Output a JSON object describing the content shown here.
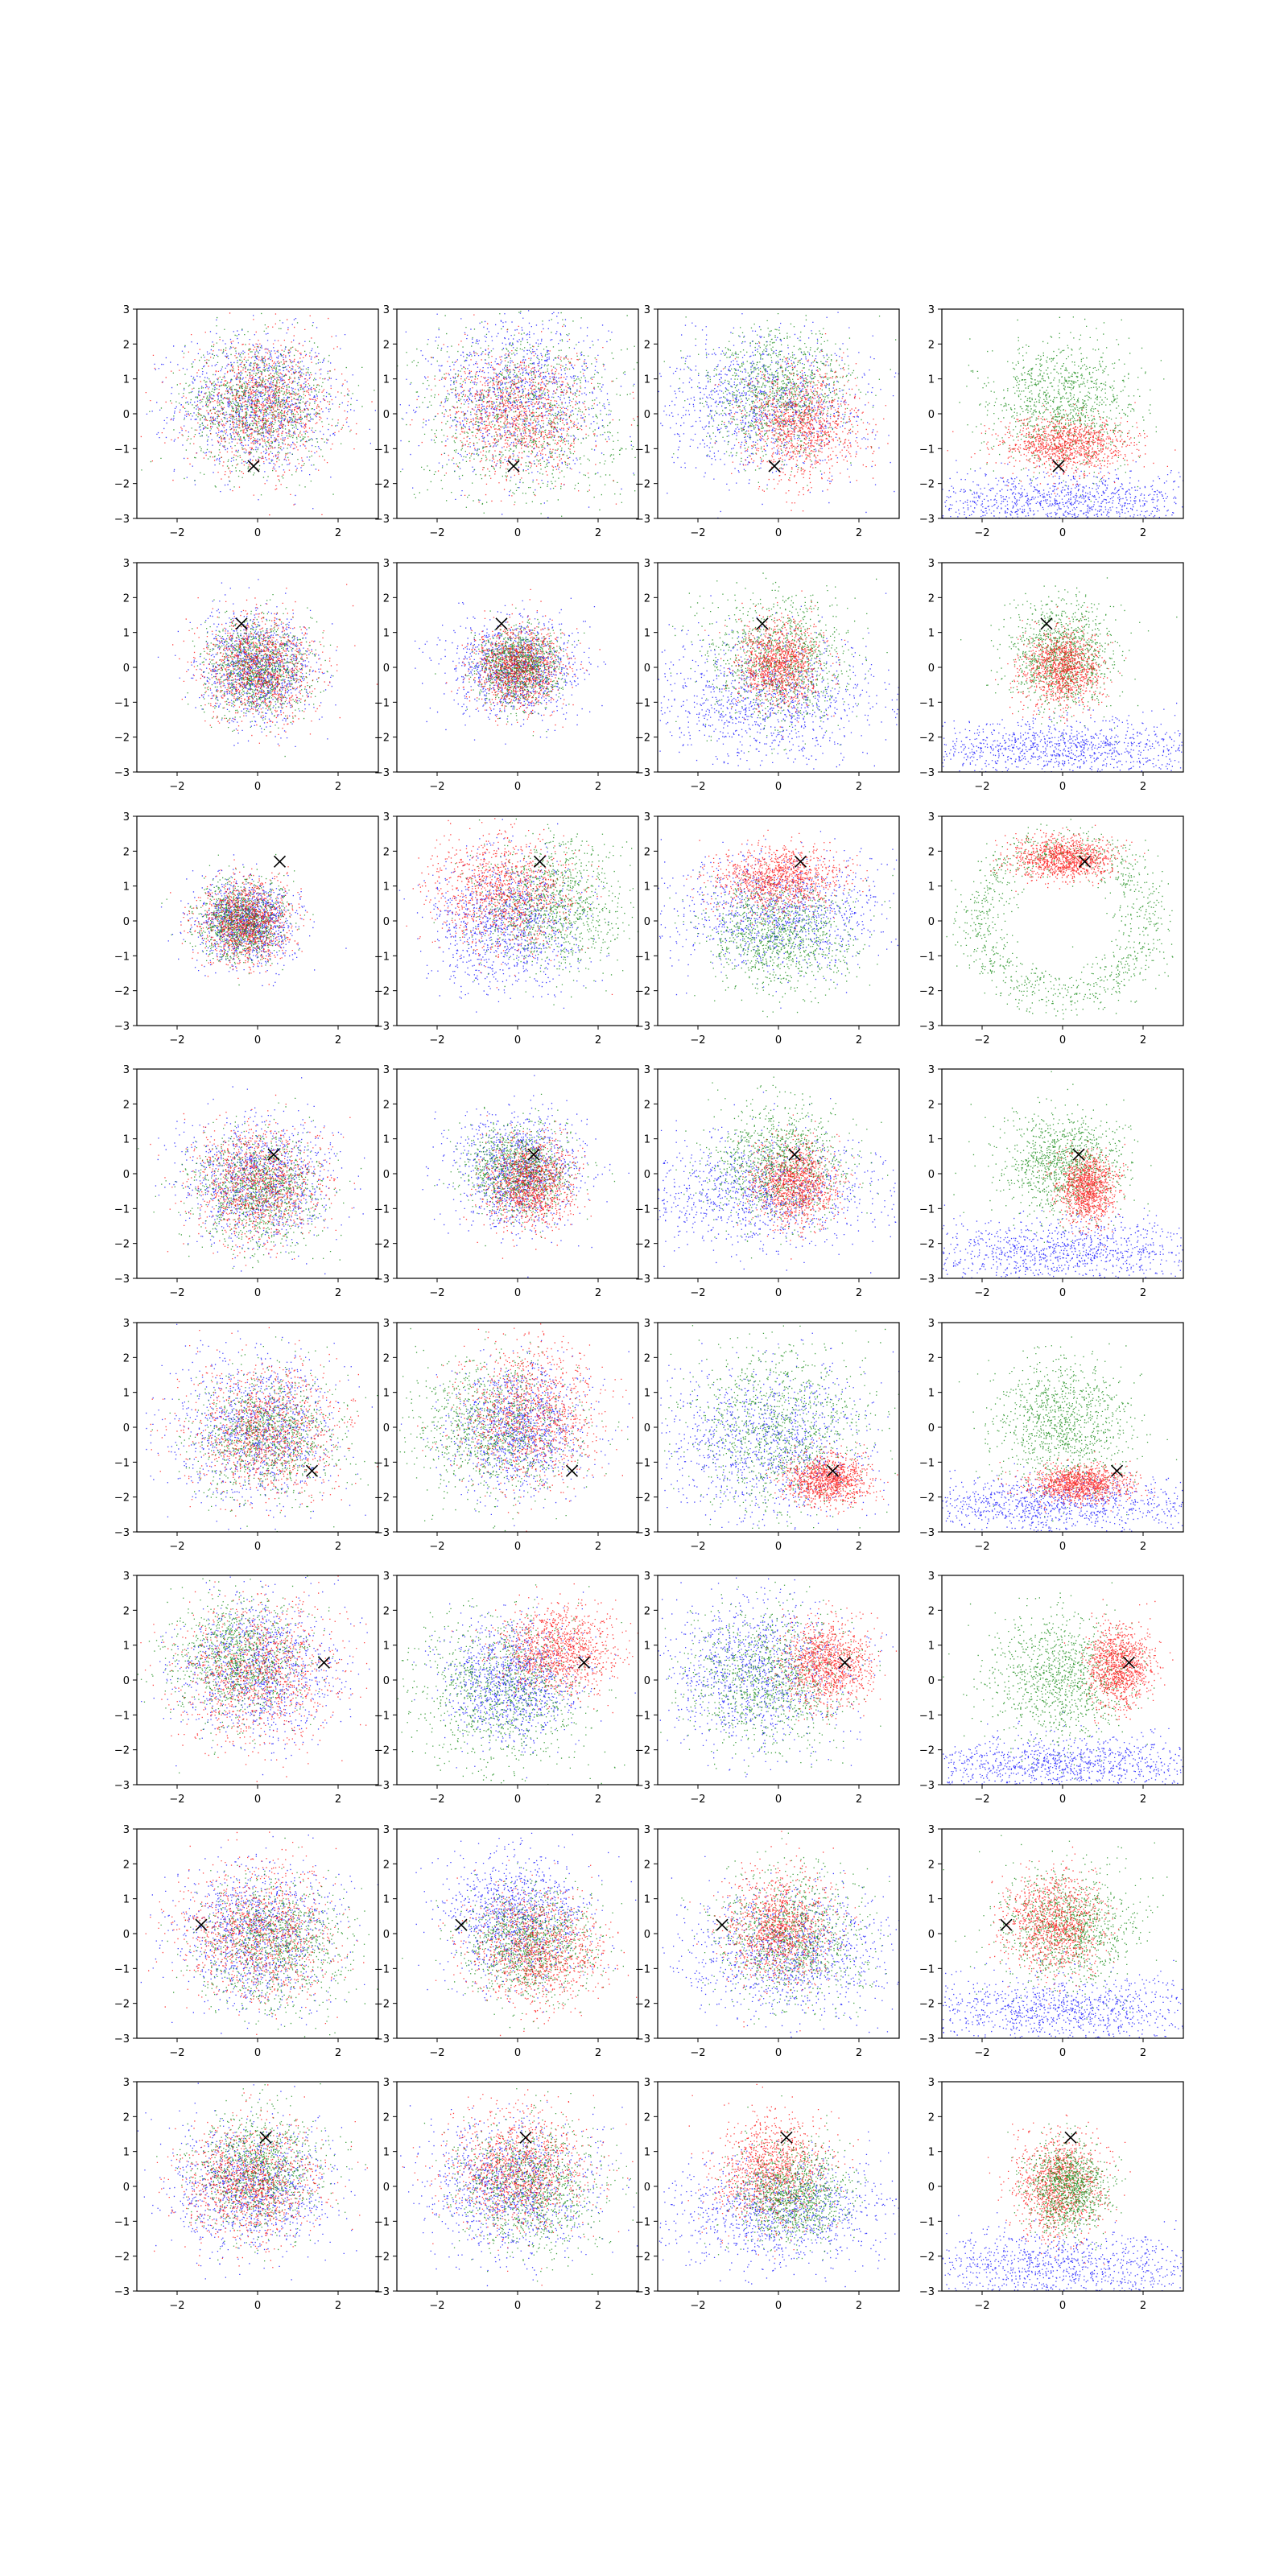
{
  "figure": {
    "background": "#ffffff",
    "rows": 8,
    "cols": 4,
    "point_colors": [
      "#0000ff",
      "#008000",
      "#ff0000"
    ],
    "marker": "x",
    "marker_color": "#000000"
  },
  "chart_data": {
    "type": "scatter",
    "xlim": [
      -3,
      3
    ],
    "ylim": [
      -3,
      3
    ],
    "x_ticks": [
      -2,
      0,
      2
    ],
    "y_ticks": [
      -3,
      -2,
      -1,
      0,
      1,
      2,
      3
    ],
    "x_tick_labels": [
      "−2",
      "0",
      "2"
    ],
    "y_tick_labels": [
      "−3",
      "−2",
      "−1",
      "0",
      "1",
      "2",
      "3"
    ],
    "grid": false,
    "legend": "none",
    "title": "",
    "xlabel": "",
    "ylabel": "",
    "markers": [
      {
        "row": 1,
        "x": -0.1,
        "y": -1.5
      },
      {
        "row": 2,
        "x": -0.4,
        "y": 1.25
      },
      {
        "row": 3,
        "x": 0.55,
        "y": 1.7
      },
      {
        "row": 4,
        "x": 0.4,
        "y": 0.55
      },
      {
        "row": 5,
        "x": 1.35,
        "y": -1.25
      },
      {
        "row": 6,
        "x": 1.65,
        "y": 0.5
      },
      {
        "row": 7,
        "x": -1.4,
        "y": 0.25
      },
      {
        "row": 8,
        "x": 0.2,
        "y": 1.4
      }
    ],
    "panels": [
      {
        "row": 1,
        "col": 1,
        "clusters": [
          {
            "color": "blue",
            "cx": 0.0,
            "cy": 0.3,
            "sx": 1.0,
            "sy": 1.0
          },
          {
            "color": "green",
            "cx": 0.0,
            "cy": 0.3,
            "sx": 0.9,
            "sy": 0.9
          },
          {
            "color": "red",
            "cx": 0.1,
            "cy": 0.2,
            "sx": 0.9,
            "sy": 0.9
          }
        ]
      },
      {
        "row": 1,
        "col": 2,
        "clusters": [
          {
            "color": "blue",
            "cx": 0.0,
            "cy": 0.6,
            "sx": 1.1,
            "sy": 1.1
          },
          {
            "color": "green",
            "cx": 0.1,
            "cy": 0.0,
            "sx": 1.3,
            "sy": 1.3
          },
          {
            "color": "red",
            "cx": 0.0,
            "cy": 0.0,
            "sx": 0.9,
            "sy": 0.9
          }
        ]
      },
      {
        "row": 1,
        "col": 3,
        "clusters": [
          {
            "color": "blue",
            "cx": -0.3,
            "cy": 0.3,
            "sx": 1.3,
            "sy": 1.0
          },
          {
            "color": "green",
            "cx": 0.0,
            "cy": 0.6,
            "sx": 0.9,
            "sy": 0.9
          },
          {
            "color": "red",
            "cx": 0.6,
            "cy": -0.3,
            "sx": 0.7,
            "sy": 0.8
          }
        ]
      },
      {
        "row": 1,
        "col": 4,
        "clusters": [
          {
            "color": "blue",
            "cx": 0.0,
            "cy": -2.5,
            "sx": 2.0,
            "sy": 0.4
          },
          {
            "color": "green",
            "cx": 0.0,
            "cy": 0.3,
            "sx": 0.9,
            "sy": 0.9
          },
          {
            "color": "red",
            "cx": 0.1,
            "cy": -0.9,
            "sx": 0.8,
            "sy": 0.4
          }
        ]
      },
      {
        "row": 2,
        "col": 1,
        "clusters": [
          {
            "color": "blue",
            "cx": 0.0,
            "cy": 0.0,
            "sx": 0.7,
            "sy": 0.75
          },
          {
            "color": "green",
            "cx": 0.0,
            "cy": 0.0,
            "sx": 0.65,
            "sy": 0.7
          },
          {
            "color": "red",
            "cx": 0.0,
            "cy": 0.0,
            "sx": 0.7,
            "sy": 0.75
          }
        ]
      },
      {
        "row": 2,
        "col": 2,
        "clusters": [
          {
            "color": "blue",
            "cx": -0.1,
            "cy": 0.0,
            "sx": 0.8,
            "sy": 0.7
          },
          {
            "color": "green",
            "cx": 0.0,
            "cy": 0.0,
            "sx": 0.5,
            "sy": 0.55
          },
          {
            "color": "red",
            "cx": 0.0,
            "cy": 0.0,
            "sx": 0.55,
            "sy": 0.6
          }
        ]
      },
      {
        "row": 2,
        "col": 3,
        "clusters": [
          {
            "color": "blue",
            "cx": -0.3,
            "cy": -0.9,
            "sx": 1.5,
            "sy": 0.9
          },
          {
            "color": "green",
            "cx": 0.0,
            "cy": 0.3,
            "sx": 0.85,
            "sy": 0.9
          },
          {
            "color": "red",
            "cx": 0.0,
            "cy": 0.1,
            "sx": 0.5,
            "sy": 0.6
          }
        ]
      },
      {
        "row": 2,
        "col": 4,
        "clusters": [
          {
            "color": "blue",
            "cx": 0.0,
            "cy": -2.3,
            "sx": 2.0,
            "sy": 0.4
          },
          {
            "color": "green",
            "cx": 0.0,
            "cy": 0.3,
            "sx": 0.65,
            "sy": 0.75
          },
          {
            "color": "red",
            "cx": 0.0,
            "cy": 0.0,
            "sx": 0.5,
            "sy": 0.55
          }
        ]
      },
      {
        "row": 3,
        "col": 1,
        "clusters": [
          {
            "color": "blue",
            "cx": -0.3,
            "cy": 0.0,
            "sx": 0.6,
            "sy": 0.6
          },
          {
            "color": "green",
            "cx": -0.4,
            "cy": 0.0,
            "sx": 0.55,
            "sy": 0.55
          },
          {
            "color": "red",
            "cx": -0.3,
            "cy": 0.0,
            "sx": 0.55,
            "sy": 0.6
          }
        ]
      },
      {
        "row": 3,
        "col": 2,
        "clusters": [
          {
            "color": "blue",
            "cx": -0.3,
            "cy": 0.0,
            "sx": 0.9,
            "sy": 0.9
          },
          {
            "color": "green",
            "cx": 0.9,
            "cy": 0.5,
            "sx": 0.9,
            "sy": 0.9
          },
          {
            "color": "red",
            "cx": -0.4,
            "cy": 0.8,
            "sx": 0.9,
            "sy": 0.8
          }
        ]
      },
      {
        "row": 3,
        "col": 3,
        "clusters": [
          {
            "color": "blue",
            "cx": 0.0,
            "cy": 0.2,
            "sx": 1.4,
            "sy": 0.8
          },
          {
            "color": "green",
            "cx": 0.0,
            "cy": -0.4,
            "sx": 0.9,
            "sy": 0.8
          },
          {
            "color": "red",
            "cx": 0.0,
            "cy": 1.2,
            "sx": 0.8,
            "sy": 0.45
          }
        ]
      },
      {
        "row": 3,
        "col": 4,
        "clusters": [
          {
            "color": "green",
            "cx": 0.0,
            "cy": 0.0,
            "ring_radius": 2.1,
            "spread": 0.35
          },
          {
            "color": "red",
            "cx": 0.0,
            "cy": 1.8,
            "sx": 0.6,
            "sy": 0.3
          }
        ]
      },
      {
        "row": 4,
        "col": 1,
        "clusters": [
          {
            "color": "blue",
            "cx": 0.0,
            "cy": -0.2,
            "sx": 0.9,
            "sy": 0.9
          },
          {
            "color": "green",
            "cx": 0.0,
            "cy": -0.5,
            "sx": 0.8,
            "sy": 0.8
          },
          {
            "color": "red",
            "cx": 0.0,
            "cy": -0.3,
            "sx": 0.8,
            "sy": 0.8
          }
        ]
      },
      {
        "row": 4,
        "col": 2,
        "clusters": [
          {
            "color": "blue",
            "cx": 0.0,
            "cy": 0.1,
            "sx": 0.8,
            "sy": 0.8
          },
          {
            "color": "green",
            "cx": 0.0,
            "cy": 0.1,
            "sx": 0.65,
            "sy": 0.65
          },
          {
            "color": "red",
            "cx": 0.3,
            "cy": -0.3,
            "sx": 0.55,
            "sy": 0.6
          }
        ]
      },
      {
        "row": 4,
        "col": 3,
        "clusters": [
          {
            "color": "blue",
            "cx": -0.5,
            "cy": -0.5,
            "sx": 1.5,
            "sy": 0.8
          },
          {
            "color": "green",
            "cx": 0.0,
            "cy": 0.3,
            "sx": 0.85,
            "sy": 0.85
          },
          {
            "color": "red",
            "cx": 0.4,
            "cy": -0.3,
            "sx": 0.5,
            "sy": 0.6
          }
        ]
      },
      {
        "row": 4,
        "col": 4,
        "clusters": [
          {
            "color": "blue",
            "cx": 0.0,
            "cy": -2.2,
            "sx": 2.0,
            "sy": 0.45
          },
          {
            "color": "green",
            "cx": 0.0,
            "cy": 0.3,
            "sx": 0.75,
            "sy": 0.75
          },
          {
            "color": "red",
            "cx": 0.6,
            "cy": -0.4,
            "sx": 0.35,
            "sy": 0.5
          }
        ]
      },
      {
        "row": 5,
        "col": 1,
        "clusters": [
          {
            "color": "blue",
            "cx": 0.0,
            "cy": 0.0,
            "sx": 1.0,
            "sy": 1.1
          },
          {
            "color": "green",
            "cx": 0.2,
            "cy": -0.2,
            "sx": 0.9,
            "sy": 0.9
          },
          {
            "color": "red",
            "cx": 0.2,
            "cy": -0.1,
            "sx": 0.95,
            "sy": 0.95
          }
        ]
      },
      {
        "row": 5,
        "col": 2,
        "clusters": [
          {
            "color": "blue",
            "cx": 0.0,
            "cy": 0.0,
            "sx": 0.85,
            "sy": 0.9
          },
          {
            "color": "green",
            "cx": -0.6,
            "cy": 0.0,
            "sx": 1.0,
            "sy": 1.0
          },
          {
            "color": "red",
            "cx": 0.3,
            "cy": 0.4,
            "sx": 0.85,
            "sy": 1.0
          }
        ]
      },
      {
        "row": 5,
        "col": 3,
        "clusters": [
          {
            "color": "blue",
            "cx": -0.3,
            "cy": -0.5,
            "sx": 1.3,
            "sy": 1.1
          },
          {
            "color": "green",
            "cx": 0.0,
            "cy": 0.0,
            "sx": 1.1,
            "sy": 1.2
          },
          {
            "color": "red",
            "cx": 1.2,
            "cy": -1.5,
            "sx": 0.5,
            "sy": 0.35
          }
        ]
      },
      {
        "row": 5,
        "col": 4,
        "clusters": [
          {
            "color": "blue",
            "cx": 0.0,
            "cy": -2.2,
            "sx": 2.0,
            "sy": 0.4
          },
          {
            "color": "green",
            "cx": 0.0,
            "cy": 0.1,
            "sx": 0.85,
            "sy": 0.9
          },
          {
            "color": "red",
            "cx": 0.4,
            "cy": -1.6,
            "sx": 0.6,
            "sy": 0.25
          }
        ]
      },
      {
        "row": 6,
        "col": 1,
        "clusters": [
          {
            "color": "blue",
            "cx": 0.0,
            "cy": 0.3,
            "sx": 1.0,
            "sy": 1.0
          },
          {
            "color": "green",
            "cx": -0.5,
            "cy": 0.6,
            "sx": 0.8,
            "sy": 0.85
          },
          {
            "color": "red",
            "cx": 0.0,
            "cy": 0.2,
            "sx": 1.0,
            "sy": 1.0
          }
        ]
      },
      {
        "row": 6,
        "col": 2,
        "clusters": [
          {
            "color": "blue",
            "cx": -0.2,
            "cy": 0.0,
            "sx": 0.8,
            "sy": 0.9
          },
          {
            "color": "green",
            "cx": -0.4,
            "cy": -0.3,
            "sx": 1.1,
            "sy": 1.1
          },
          {
            "color": "red",
            "cx": 1.0,
            "cy": 0.9,
            "sx": 0.7,
            "sy": 0.6
          }
        ]
      },
      {
        "row": 6,
        "col": 3,
        "clusters": [
          {
            "color": "blue",
            "cx": -0.6,
            "cy": 0.2,
            "sx": 1.2,
            "sy": 1.1
          },
          {
            "color": "green",
            "cx": -0.3,
            "cy": 0.0,
            "sx": 1.0,
            "sy": 1.0
          },
          {
            "color": "red",
            "cx": 1.2,
            "cy": 0.5,
            "sx": 0.55,
            "sy": 0.6
          }
        ]
      },
      {
        "row": 6,
        "col": 4,
        "clusters": [
          {
            "color": "blue",
            "cx": 0.0,
            "cy": -2.4,
            "sx": 2.0,
            "sy": 0.4
          },
          {
            "color": "green",
            "cx": -0.1,
            "cy": 0.1,
            "sx": 0.9,
            "sy": 0.9
          },
          {
            "color": "red",
            "cx": 1.4,
            "cy": 0.4,
            "sx": 0.4,
            "sy": 0.55
          }
        ]
      },
      {
        "row": 7,
        "col": 1,
        "clusters": [
          {
            "color": "blue",
            "cx": 0.0,
            "cy": 0.0,
            "sx": 1.0,
            "sy": 1.0
          },
          {
            "color": "green",
            "cx": 0.4,
            "cy": -0.3,
            "sx": 0.9,
            "sy": 0.9
          },
          {
            "color": "red",
            "cx": 0.0,
            "cy": 0.0,
            "sx": 0.95,
            "sy": 0.95
          }
        ]
      },
      {
        "row": 7,
        "col": 2,
        "clusters": [
          {
            "color": "blue",
            "cx": 0.0,
            "cy": 0.5,
            "sx": 0.9,
            "sy": 0.9
          },
          {
            "color": "green",
            "cx": 0.3,
            "cy": -0.3,
            "sx": 0.8,
            "sy": 0.8
          },
          {
            "color": "red",
            "cx": 0.5,
            "cy": -0.4,
            "sx": 0.8,
            "sy": 0.8
          }
        ]
      },
      {
        "row": 7,
        "col": 3,
        "clusters": [
          {
            "color": "blue",
            "cx": 0.3,
            "cy": -0.5,
            "sx": 1.3,
            "sy": 0.9
          },
          {
            "color": "green",
            "cx": 0.3,
            "cy": -0.1,
            "sx": 0.9,
            "sy": 0.9
          },
          {
            "color": "red",
            "cx": 0.0,
            "cy": 0.2,
            "sx": 0.65,
            "sy": 0.75
          }
        ]
      },
      {
        "row": 7,
        "col": 4,
        "clusters": [
          {
            "color": "blue",
            "cx": 0.0,
            "cy": -2.2,
            "sx": 2.0,
            "sy": 0.5
          },
          {
            "color": "green",
            "cx": 0.2,
            "cy": 0.2,
            "sx": 0.85,
            "sy": 0.85
          },
          {
            "color": "red",
            "cx": -0.2,
            "cy": 0.3,
            "sx": 0.6,
            "sy": 0.7
          }
        ]
      },
      {
        "row": 8,
        "col": 1,
        "clusters": [
          {
            "color": "blue",
            "cx": -0.2,
            "cy": 0.0,
            "sx": 1.0,
            "sy": 0.95
          },
          {
            "color": "green",
            "cx": 0.0,
            "cy": 0.5,
            "sx": 0.8,
            "sy": 0.85
          },
          {
            "color": "red",
            "cx": -0.2,
            "cy": 0.1,
            "sx": 0.85,
            "sy": 0.85
          }
        ]
      },
      {
        "row": 8,
        "col": 2,
        "clusters": [
          {
            "color": "blue",
            "cx": -0.2,
            "cy": 0.0,
            "sx": 1.1,
            "sy": 0.9
          },
          {
            "color": "green",
            "cx": 0.3,
            "cy": 0.0,
            "sx": 0.9,
            "sy": 0.9
          },
          {
            "color": "red",
            "cx": 0.0,
            "cy": 0.5,
            "sx": 0.9,
            "sy": 0.85
          }
        ]
      },
      {
        "row": 8,
        "col": 3,
        "clusters": [
          {
            "color": "blue",
            "cx": 0.0,
            "cy": -0.7,
            "sx": 1.5,
            "sy": 0.8
          },
          {
            "color": "red",
            "cx": -0.2,
            "cy": 0.5,
            "sx": 0.7,
            "sy": 0.75
          },
          {
            "color": "green",
            "cx": 0.3,
            "cy": -0.2,
            "sx": 0.7,
            "sy": 0.7
          }
        ]
      },
      {
        "row": 8,
        "col": 4,
        "clusters": [
          {
            "color": "blue",
            "cx": 0.0,
            "cy": -2.3,
            "sx": 2.0,
            "sy": 0.5
          },
          {
            "color": "red",
            "cx": -0.1,
            "cy": 0.0,
            "sx": 0.55,
            "sy": 0.7
          },
          {
            "color": "green",
            "cx": 0.1,
            "cy": 0.0,
            "sx": 0.5,
            "sy": 0.65
          }
        ]
      }
    ]
  }
}
